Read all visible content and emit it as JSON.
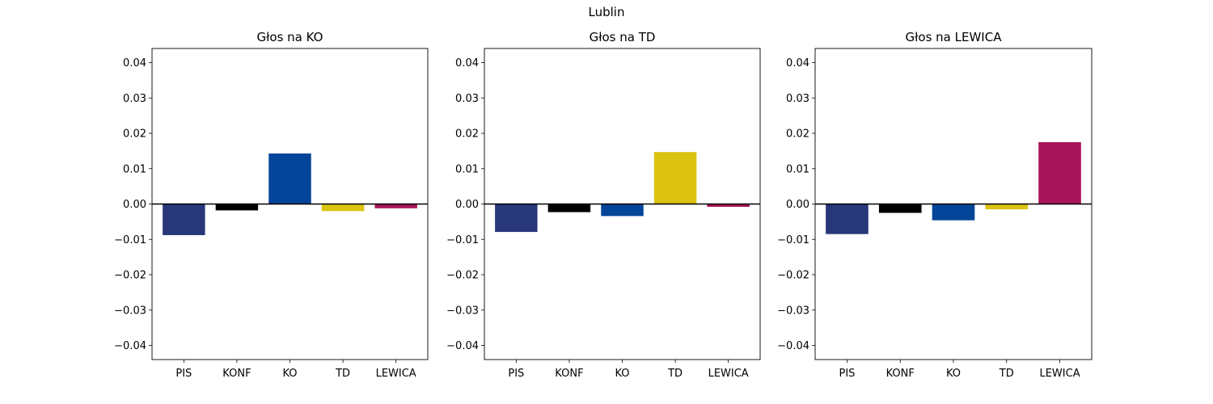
{
  "figure": {
    "title": "Lublin"
  },
  "chart_data": [
    {
      "type": "bar",
      "title": "Głos na KO",
      "categories": [
        "PIS",
        "KONF",
        "KO",
        "TD",
        "LEWICA"
      ],
      "values": [
        -0.0088,
        -0.0018,
        0.0143,
        -0.002,
        -0.0012
      ],
      "colors": [
        "#283779",
        "#000000",
        "#034599",
        "#dbc30f",
        "#a8145a"
      ],
      "ylim": [
        -0.044,
        0.044
      ],
      "yticks": [
        "0.04",
        "0.03",
        "0.02",
        "0.01",
        "0.00",
        "−0.01",
        "−0.02",
        "−0.03",
        "−0.04"
      ],
      "ytick_values": [
        0.04,
        0.03,
        0.02,
        0.01,
        0,
        -0.01,
        -0.02,
        -0.03,
        -0.04
      ],
      "xlabel": "",
      "ylabel": "",
      "grid": false,
      "zero_line": true
    },
    {
      "type": "bar",
      "title": "Głos na TD",
      "categories": [
        "PIS",
        "KONF",
        "KO",
        "TD",
        "LEWICA"
      ],
      "values": [
        -0.0079,
        -0.0023,
        -0.0034,
        0.0147,
        -0.0008
      ],
      "colors": [
        "#283779",
        "#000000",
        "#034599",
        "#dbc30f",
        "#a8145a"
      ],
      "ylim": [
        -0.044,
        0.044
      ],
      "yticks": [
        "0.04",
        "0.03",
        "0.02",
        "0.01",
        "0.00",
        "−0.01",
        "−0.02",
        "−0.03",
        "−0.04"
      ],
      "ytick_values": [
        0.04,
        0.03,
        0.02,
        0.01,
        0,
        -0.01,
        -0.02,
        -0.03,
        -0.04
      ],
      "xlabel": "",
      "ylabel": "",
      "grid": false,
      "zero_line": true
    },
    {
      "type": "bar",
      "title": "Głos na LEWICA",
      "categories": [
        "PIS",
        "KONF",
        "KO",
        "TD",
        "LEWICA"
      ],
      "values": [
        -0.0085,
        -0.0025,
        -0.0046,
        -0.0015,
        0.0175
      ],
      "colors": [
        "#283779",
        "#000000",
        "#034599",
        "#dbc30f",
        "#a8145a"
      ],
      "ylim": [
        -0.044,
        0.044
      ],
      "yticks": [
        "0.04",
        "0.03",
        "0.02",
        "0.01",
        "0.00",
        "−0.01",
        "−0.02",
        "−0.03",
        "−0.04"
      ],
      "ytick_values": [
        0.04,
        0.03,
        0.02,
        0.01,
        0,
        -0.01,
        -0.02,
        -0.03,
        -0.04
      ],
      "xlabel": "",
      "ylabel": "",
      "grid": false,
      "zero_line": true
    }
  ]
}
